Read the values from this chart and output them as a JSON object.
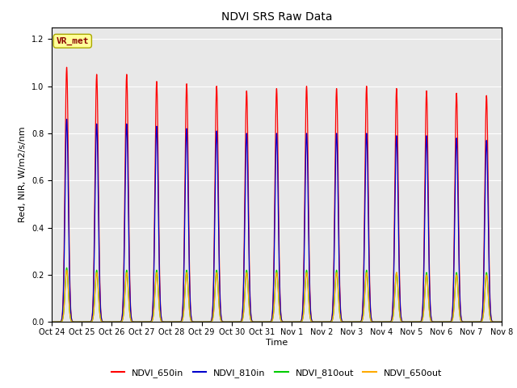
{
  "title": "NDVI SRS Raw Data",
  "ylabel": "Red, NIR, W/m2/s/nm",
  "xlabel": "Time",
  "annotation": "VR_met",
  "ylim": [
    0,
    1.25
  ],
  "background_color": "#e8e8e8",
  "fig_bg": "#ffffff",
  "series": {
    "NDVI_650in": {
      "color": "#ff0000",
      "scale": [
        1.08,
        1.05,
        1.05,
        1.02,
        1.01,
        1.0,
        0.98,
        0.99,
        1.0,
        0.99,
        1.0,
        0.99,
        0.98,
        0.97,
        0.96
      ]
    },
    "NDVI_810in": {
      "color": "#0000cc",
      "scale": [
        0.86,
        0.84,
        0.84,
        0.83,
        0.82,
        0.81,
        0.8,
        0.8,
        0.8,
        0.8,
        0.8,
        0.79,
        0.79,
        0.78,
        0.77
      ]
    },
    "NDVI_810out": {
      "color": "#00cc00",
      "scale": [
        0.23,
        0.22,
        0.22,
        0.22,
        0.22,
        0.22,
        0.22,
        0.22,
        0.22,
        0.22,
        0.22,
        0.21,
        0.21,
        0.21,
        0.21
      ]
    },
    "NDVI_650out": {
      "color": "#ffaa00",
      "scale": [
        0.22,
        0.21,
        0.21,
        0.21,
        0.21,
        0.21,
        0.21,
        0.21,
        0.21,
        0.21,
        0.21,
        0.21,
        0.2,
        0.2,
        0.2
      ]
    }
  },
  "tick_labels": [
    "Oct 24",
    "Oct 25",
    "Oct 26",
    "Oct 27",
    "Oct 28",
    "Oct 29",
    "Oct 30",
    "Oct 31",
    "Nov 1",
    "Nov 2",
    "Nov 3",
    "Nov 4",
    "Nov 5",
    "Nov 6",
    "Nov 7",
    "Nov 8"
  ],
  "num_days": 15,
  "points_per_day": 300,
  "sigma": 0.055,
  "linewidth": 0.9
}
